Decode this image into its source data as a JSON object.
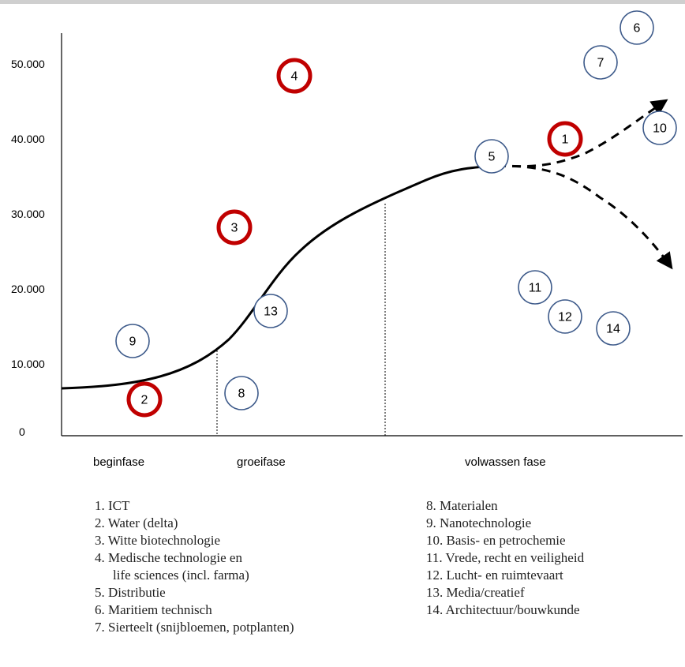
{
  "y_axis": {
    "ticks": [
      {
        "label": "50.000",
        "value": 50000
      },
      {
        "label": "40.000",
        "value": 40000
      },
      {
        "label": "30.000",
        "value": 30000
      },
      {
        "label": "20.000",
        "value": 20000
      },
      {
        "label": "10.000",
        "value": 10000
      },
      {
        "label": "0",
        "value": 0
      }
    ]
  },
  "phases": [
    "beginfase",
    "groeifase",
    "volwassen fase"
  ],
  "colors": {
    "highlight": "#c00000",
    "normal": "#3d5a8a",
    "curve": "#000000"
  },
  "sectors": [
    {
      "n": "1",
      "highlight": true
    },
    {
      "n": "2",
      "highlight": true
    },
    {
      "n": "3",
      "highlight": true
    },
    {
      "n": "4",
      "highlight": true
    },
    {
      "n": "5",
      "highlight": false
    },
    {
      "n": "6",
      "highlight": false
    },
    {
      "n": "7",
      "highlight": false
    },
    {
      "n": "8",
      "highlight": false
    },
    {
      "n": "9",
      "highlight": false
    },
    {
      "n": "10",
      "highlight": false
    },
    {
      "n": "11",
      "highlight": false
    },
    {
      "n": "12",
      "highlight": false
    },
    {
      "n": "13",
      "highlight": false
    },
    {
      "n": "14",
      "highlight": false
    }
  ],
  "legend_left": [
    "1.  ICT",
    "2.  Water (delta)",
    "3.  Witte biotechnologie",
    "4.  Medische technologie en",
    "life sciences (incl. farma)",
    "5.  Distributie",
    "6.  Maritiem technisch",
    "7.  Sierteelt (snijbloemen, potplanten)"
  ],
  "legend_right": [
    "8.  Materialen",
    "9.  Nanotechnologie",
    "10. Basis- en petrochemie",
    "11. Vrede, recht en veiligheid",
    "12. Lucht- en ruimtevaart",
    "13. Media/creatief",
    "14. Architectuur/bouwkunde"
  ]
}
